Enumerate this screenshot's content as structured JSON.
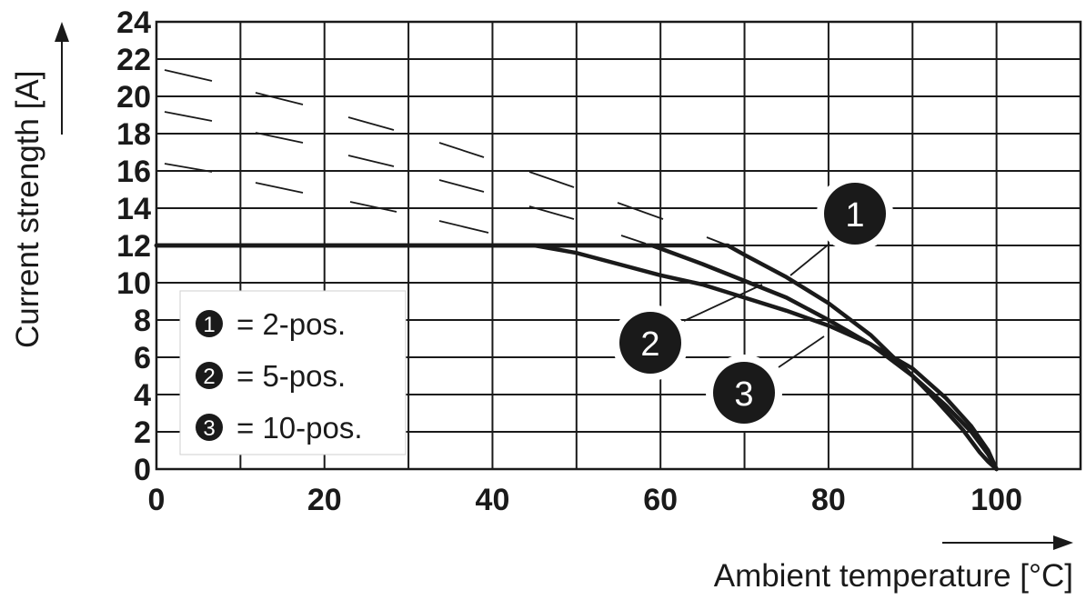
{
  "chart_data": {
    "type": "line",
    "xlabel": "Ambient temperature [°C]",
    "ylabel": "Current strength [A]",
    "xlim": [
      0,
      110
    ],
    "ylim": [
      0,
      24
    ],
    "x_ticks": [
      0,
      20,
      40,
      60,
      80,
      100
    ],
    "y_ticks": [
      0,
      2,
      4,
      6,
      8,
      10,
      12,
      14,
      16,
      18,
      20,
      22,
      24
    ],
    "grid": true,
    "legend_position": "bottom-left",
    "series": [
      {
        "name": "1",
        "legend_label": "= 2-pos.",
        "x": [
          0,
          68,
          70,
          75,
          80,
          85,
          90,
          93,
          96,
          98,
          99,
          100
        ],
        "y": [
          12,
          12,
          11.5,
          10.3,
          8.9,
          7.2,
          5.0,
          3.6,
          2.1,
          0.9,
          0.4,
          0
        ]
      },
      {
        "name": "2",
        "legend_label": "= 5-pos.",
        "x": [
          0,
          59,
          65,
          70,
          75,
          80,
          85,
          90,
          94,
          97,
          99,
          100
        ],
        "y": [
          12,
          12,
          11.0,
          10.1,
          9.2,
          8.0,
          6.7,
          5.0,
          3.4,
          2.0,
          0.8,
          0
        ]
      },
      {
        "name": "3",
        "legend_label": "= 10-pos.",
        "x": [
          0,
          45,
          50,
          55,
          60,
          65,
          70,
          75,
          80,
          85,
          90,
          94,
          97,
          99,
          100
        ],
        "y": [
          12,
          12,
          11.6,
          11.0,
          10.4,
          9.9,
          9.2,
          8.5,
          7.7,
          6.7,
          5.4,
          3.8,
          2.3,
          1.0,
          0
        ]
      }
    ]
  }
}
